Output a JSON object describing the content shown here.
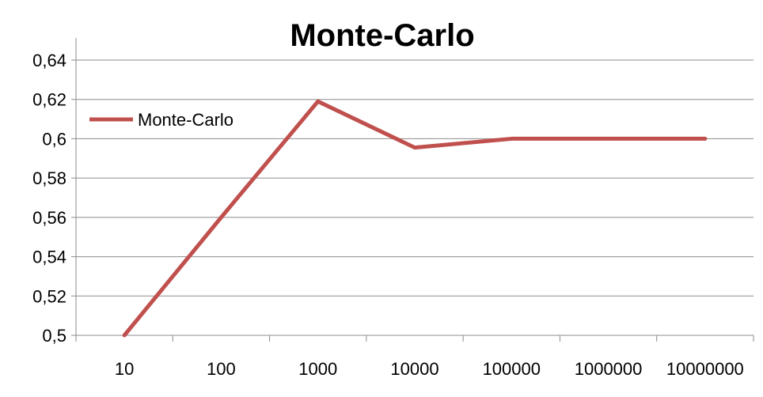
{
  "chart_data": {
    "type": "line",
    "title": "Monte-Carlo",
    "xlabel": "",
    "ylabel": "",
    "categories": [
      "10",
      "100",
      "1000",
      "10000",
      "100000",
      "1000000",
      "10000000"
    ],
    "series": [
      {
        "name": "Monte-Carlo",
        "color": "#c0504d",
        "values": [
          0.5,
          0.56,
          0.619,
          0.5955,
          0.6,
          0.6,
          0.6
        ]
      }
    ],
    "ylim": [
      0.5,
      0.64
    ],
    "yticks": [
      0.5,
      0.52,
      0.54,
      0.56,
      0.58,
      0.6,
      0.62,
      0.64
    ],
    "ytick_labels": [
      "0,5",
      "0,52",
      "0,54",
      "0,56",
      "0,58",
      "0,6",
      "0,62",
      "0,64"
    ],
    "grid": true,
    "legend_position": "top-left"
  }
}
